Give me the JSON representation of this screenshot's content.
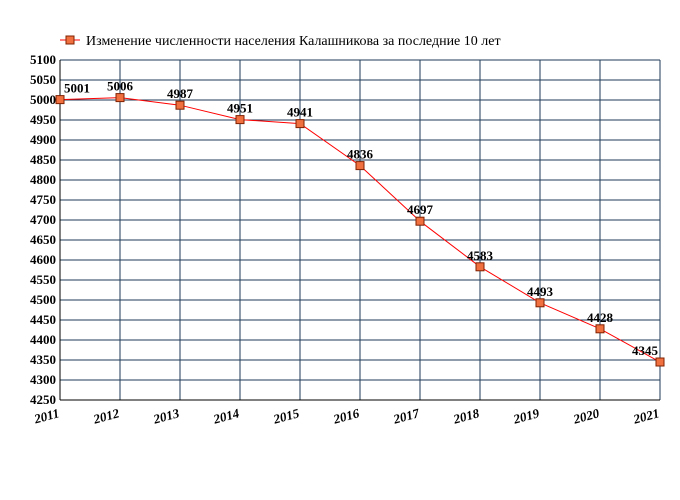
{
  "chart_data": {
    "type": "line",
    "title": "",
    "xlabel": "",
    "ylabel": "",
    "x": [
      "2011",
      "2012",
      "2013",
      "2014",
      "2015",
      "2016",
      "2017",
      "2018",
      "2019",
      "2020",
      "2021"
    ],
    "series": [
      {
        "name": "Изменение численности населения Калашникова за последние 10 лет",
        "values": [
          5001,
          5006,
          4987,
          4951,
          4941,
          4836,
          4697,
          4583,
          4493,
          4428,
          4345
        ]
      }
    ],
    "ylim": [
      4250,
      5100
    ],
    "y_ticks": [
      "4250",
      "4300",
      "4350",
      "4400",
      "4450",
      "4500",
      "4550",
      "4600",
      "4650",
      "4700",
      "4750",
      "4800",
      "4850",
      "4900",
      "4950",
      "5000",
      "5050",
      "5100"
    ],
    "grid": true,
    "legend_position": "top",
    "colors": {
      "line": "#ff0000",
      "marker_fill": "#f07040",
      "marker_stroke": "#802000",
      "grid": "#1f3a5a",
      "axis": "#000000"
    }
  }
}
